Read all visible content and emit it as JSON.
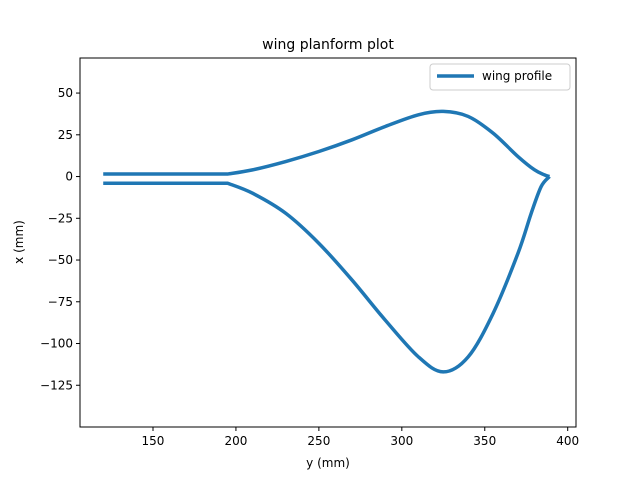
{
  "chart_data": {
    "type": "line",
    "title": "wing planform plot",
    "xlabel": "y (mm)",
    "ylabel": "x (mm)",
    "xlim": [
      106,
      405
    ],
    "ylim": [
      -150,
      71
    ],
    "xticks": [
      150,
      200,
      250,
      300,
      350,
      400
    ],
    "yticks": [
      50,
      25,
      0,
      -25,
      -50,
      -75,
      -100,
      -125
    ],
    "xtick_labels": [
      "150",
      "200",
      "250",
      "300",
      "350",
      "400"
    ],
    "ytick_labels": [
      "50",
      "25",
      "0",
      "−25",
      "−50",
      "−75",
      "−100",
      "−125"
    ],
    "grid": false,
    "legend_position": "top-right",
    "line_color": "#1f77b4",
    "series": [
      {
        "name": "wing profile",
        "parts": [
          {
            "x": [
              120,
              195,
              210,
              230,
              250,
              270,
              290,
              310,
              325,
              340,
              355,
              370,
              380,
              386,
              389
            ],
            "y": [
              1.5,
              1.5,
              4,
              9,
              15,
              22,
              30,
              37,
              39,
              36,
              26,
              12,
              4,
              1,
              0
            ]
          },
          {
            "x": [
              120,
              195,
              210,
              230,
              250,
              270,
              290,
              310,
              325,
              340,
              355,
              370,
              378,
              384,
              389
            ],
            "y": [
              -4,
              -4,
              -10,
              -22,
              -40,
              -62,
              -86,
              -108,
              -117,
              -108,
              -82,
              -46,
              -22,
              -6,
              0
            ]
          }
        ]
      }
    ]
  }
}
